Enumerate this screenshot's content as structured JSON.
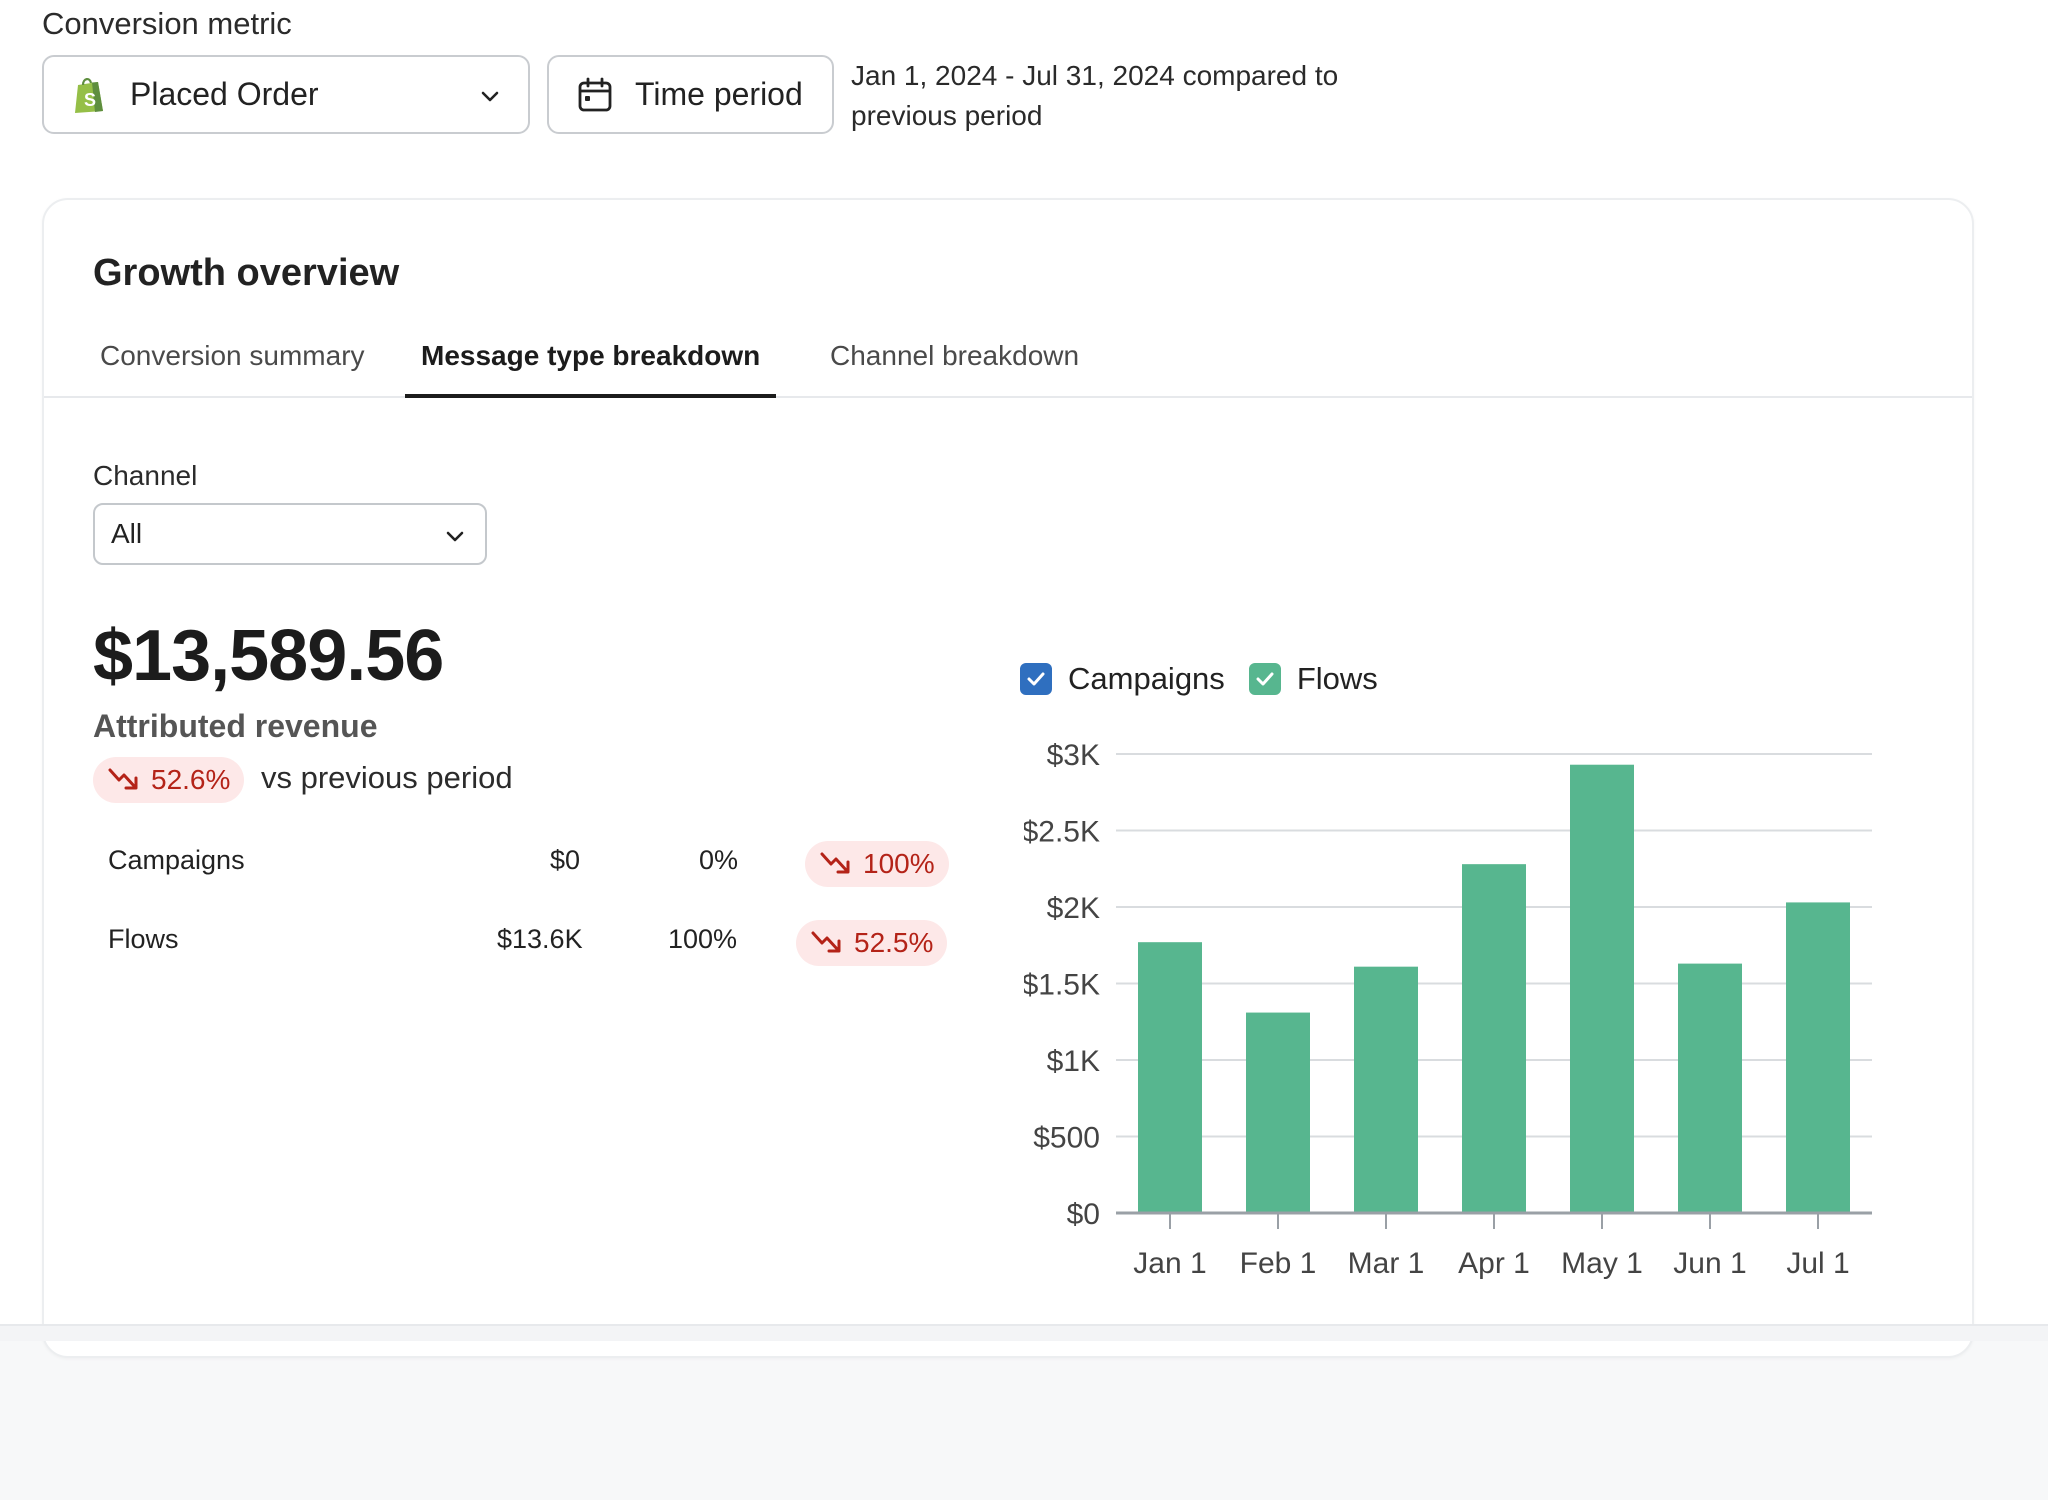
{
  "header": {
    "conversion_metric_label": "Conversion metric",
    "metric_select_value": "Placed Order",
    "time_period_label": "Time period",
    "period_line1": "Jan 1, 2024 - Jul 31, 2024 compared to",
    "period_line2": "previous period"
  },
  "card": {
    "title": "Growth overview",
    "tabs": [
      {
        "label": "Conversion summary"
      },
      {
        "label": "Message type breakdown"
      },
      {
        "label": "Channel breakdown"
      }
    ],
    "active_tab": "Message type breakdown",
    "channel_label": "Channel",
    "channel_value": "All",
    "total_value": "$13,589.56",
    "total_label": "Attributed revenue",
    "total_change": "52.6%",
    "total_change_suffix": "vs previous period",
    "rows": [
      {
        "name": "Campaigns",
        "value": "$0",
        "share": "0%",
        "change": "100%"
      },
      {
        "name": "Flows",
        "value": "$13.6K",
        "share": "100%",
        "change": "52.5%"
      }
    ],
    "legend": [
      {
        "label": "Campaigns",
        "color": "#2f6fbf",
        "checked": true
      },
      {
        "label": "Flows",
        "color": "#57b68f",
        "checked": true
      }
    ]
  },
  "colors": {
    "flows_bar": "#57b68f",
    "campaigns": "#2f6fbf",
    "negative_text": "#b42318",
    "negative_bg": "#fde8e8"
  },
  "chart_data": {
    "type": "bar",
    "categories": [
      "Jan 1",
      "Feb 1",
      "Mar 1",
      "Apr 1",
      "May 1",
      "Jun 1",
      "Jul 1"
    ],
    "series": [
      {
        "name": "Campaigns",
        "values": [
          0,
          0,
          0,
          0,
          0,
          0,
          0
        ]
      },
      {
        "name": "Flows",
        "values": [
          1770,
          1310,
          1610,
          2280,
          2930,
          1630,
          2030
        ]
      }
    ],
    "y_ticks": [
      "$0",
      "$500",
      "$1K",
      "$1.5K",
      "$2K",
      "$2.5K",
      "$3K"
    ],
    "ylim": [
      0,
      3000
    ],
    "grid": true,
    "legend_position": "top-left"
  }
}
